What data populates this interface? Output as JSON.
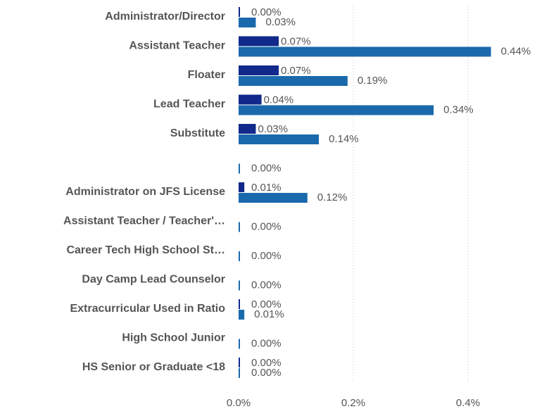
{
  "chart_data": {
    "type": "bar",
    "orientation": "horizontal",
    "categories": [
      "Administrator/Director",
      "Assistant Teacher",
      "Floater",
      "Lead Teacher",
      "Substitute",
      null,
      "Administrator on JFS License",
      "Assistant Teacher / Teacher'…",
      "Career Tech High School St…",
      "Day Camp Lead Counselor",
      "Extracurricular Used in Ratio",
      "High School Junior",
      "HS Senior or Graduate <18"
    ],
    "series": [
      {
        "color": "#11298a",
        "values": [
          0.0,
          0.07,
          0.07,
          0.04,
          0.03,
          null,
          0.01,
          null,
          null,
          null,
          0.0,
          null,
          0.0
        ],
        "value_labels": [
          "0.00%",
          "0.07%",
          "0.07%",
          "0.04%",
          "0.03%",
          null,
          "0.01%",
          null,
          null,
          null,
          "0.00%",
          null,
          "0.00%"
        ]
      },
      {
        "color": "#1b69ad",
        "values": [
          0.03,
          0.44,
          0.19,
          0.34,
          0.14,
          0.0,
          0.12,
          0.0,
          0.0,
          0.0,
          0.01,
          0.0,
          0.0
        ],
        "value_labels": [
          "0.03%",
          "0.44%",
          "0.19%",
          "0.34%",
          "0.14%",
          "0.00%",
          "0.12%",
          "0.00%",
          "0.00%",
          "0.00%",
          "0.01%",
          "0.00%",
          "0.00%"
        ]
      }
    ],
    "xlim": [
      0,
      0.5
    ],
    "xticks": [
      {
        "value": 0,
        "label": "0.0%"
      },
      {
        "value": 0.2,
        "label": "0.2%"
      },
      {
        "value": 0.4,
        "label": "0.4%"
      }
    ],
    "grid": true
  }
}
